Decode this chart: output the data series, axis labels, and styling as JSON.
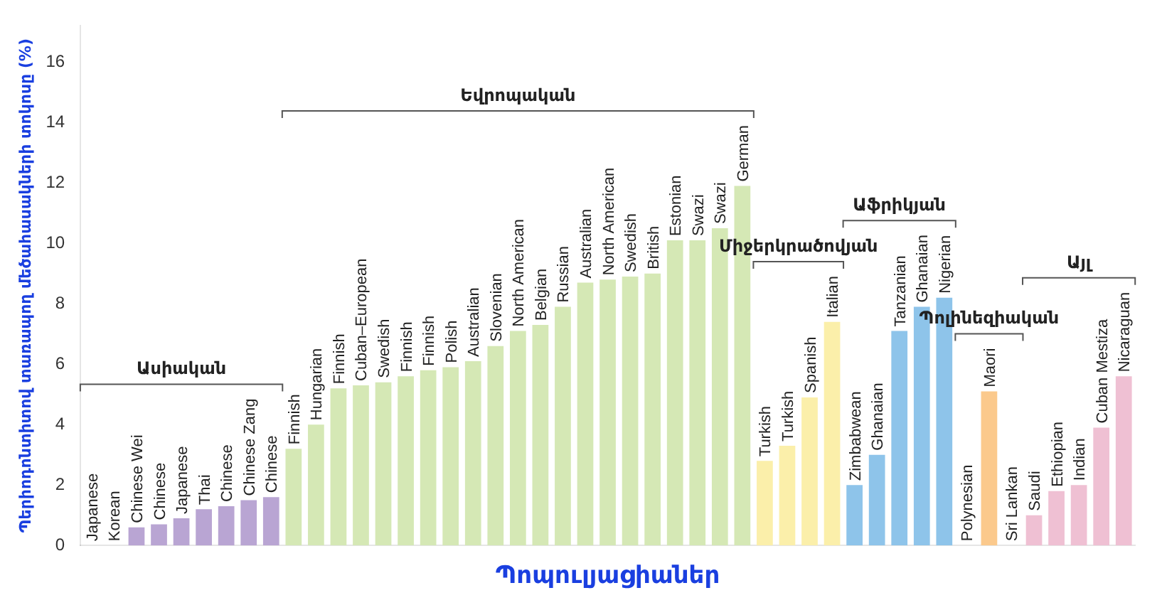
{
  "chart_data": {
    "type": "bar",
    "xlabel": "Պոպուլյացիաներ",
    "ylabel": "Պերիոդոնտիտով տառապող մեծահասակների տոկոսը (%)",
    "categories": [
      "Japanese",
      "Korean",
      "Chinese Wei",
      "Chinese",
      "Japanese",
      "Thai",
      "Chinese",
      "Chinese Zang",
      "Chinese",
      "Finnish",
      "Hungarian",
      "Finnish",
      "Cuban–European",
      "Swedish",
      "Finnish",
      "Finnish",
      "Polish",
      "Australian",
      "Slovenian",
      "North American",
      "Belgian",
      "Russian",
      "Australian",
      "North American",
      "Swedish",
      "British",
      "Estonian",
      "Swazi",
      "Swazi",
      "German",
      "Turkish",
      "Turkish",
      "Spanish",
      "Italian",
      "Zimbabwean",
      "Ghanaian",
      "Tanzanian",
      "Ghanaian",
      "Nigerian",
      "Polynesian",
      "Maori",
      "Sri Lankan",
      "Saudi",
      "Ethiopian",
      "Indian",
      "Cuban Mestiza",
      "Nicaraguan"
    ],
    "values": [
      0,
      0,
      0.6,
      0.7,
      0.9,
      1.2,
      1.3,
      1.5,
      1.6,
      3.2,
      4.0,
      5.2,
      5.3,
      5.4,
      5.6,
      5.8,
      5.9,
      6.1,
      6.6,
      7.1,
      7.3,
      7.9,
      8.7,
      8.8,
      8.9,
      9.0,
      10.1,
      10.1,
      10.5,
      11.9,
      2.8,
      3.3,
      4.9,
      7.4,
      2.0,
      3.0,
      7.1,
      7.9,
      8.2,
      0,
      5.1,
      0,
      1.0,
      1.8,
      2.0,
      3.9,
      5.6
    ],
    "colors": [
      "#b9a5d3",
      "#b9a5d3",
      "#b9a5d3",
      "#b9a5d3",
      "#b9a5d3",
      "#b9a5d3",
      "#b9a5d3",
      "#b9a5d3",
      "#b9a5d3",
      "#d5e8b5",
      "#d5e8b5",
      "#d5e8b5",
      "#d5e8b5",
      "#d5e8b5",
      "#d5e8b5",
      "#d5e8b5",
      "#d5e8b5",
      "#d5e8b5",
      "#d5e8b5",
      "#d5e8b5",
      "#d5e8b5",
      "#d5e8b5",
      "#d5e8b5",
      "#d5e8b5",
      "#d5e8b5",
      "#d5e8b5",
      "#d5e8b5",
      "#d5e8b5",
      "#d5e8b5",
      "#d5e8b5",
      "#fbefaa",
      "#fbefaa",
      "#fbefaa",
      "#fbefaa",
      "#8ec4ea",
      "#8ec4ea",
      "#8ec4ea",
      "#8ec4ea",
      "#8ec4ea",
      "#fbc98c",
      "#fbc98c",
      "#fbc98c",
      "#efc0d3",
      "#efc0d3",
      "#efc0d3",
      "#efc0d3",
      "#efc0d3"
    ],
    "annotations": [
      "Ասիական",
      "Եվրոպական",
      "Միջերկրածովյան",
      "Աֆրիկյան",
      "Պոլինեզիական",
      "Այլ"
    ],
    "ylim": [
      0,
      17.2
    ],
    "yticks": [
      0,
      2,
      4,
      6,
      8,
      10,
      12,
      14,
      16
    ],
    "grid": false,
    "legend": false
  }
}
